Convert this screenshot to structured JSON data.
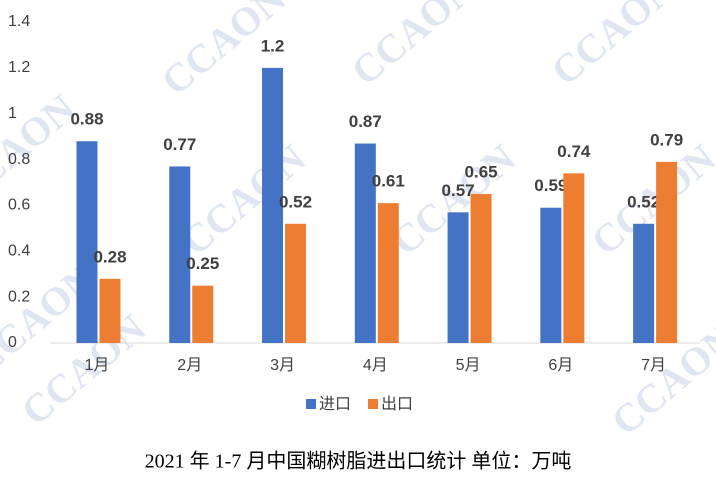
{
  "chart_data": {
    "type": "bar",
    "title": "2021 年 1-7 月中国糊树脂进出口统计    单位：万吨",
    "watermark": "CCAON",
    "categories": [
      "1月",
      "2月",
      "3月",
      "4月",
      "5月",
      "6月",
      "7月"
    ],
    "series": [
      {
        "name": "进口",
        "color": "#4472c4",
        "values": [
          0.88,
          0.77,
          1.2,
          0.87,
          0.57,
          0.59,
          0.52
        ]
      },
      {
        "name": "出口",
        "color": "#ed7d31",
        "values": [
          0.28,
          0.25,
          0.52,
          0.61,
          0.65,
          0.74,
          0.79
        ]
      }
    ],
    "ylim": [
      0,
      1.4
    ],
    "yticks": [
      0,
      0.2,
      0.4,
      0.6,
      0.8,
      1,
      1.2,
      1.4
    ],
    "grid": false,
    "legend": "bottom"
  }
}
